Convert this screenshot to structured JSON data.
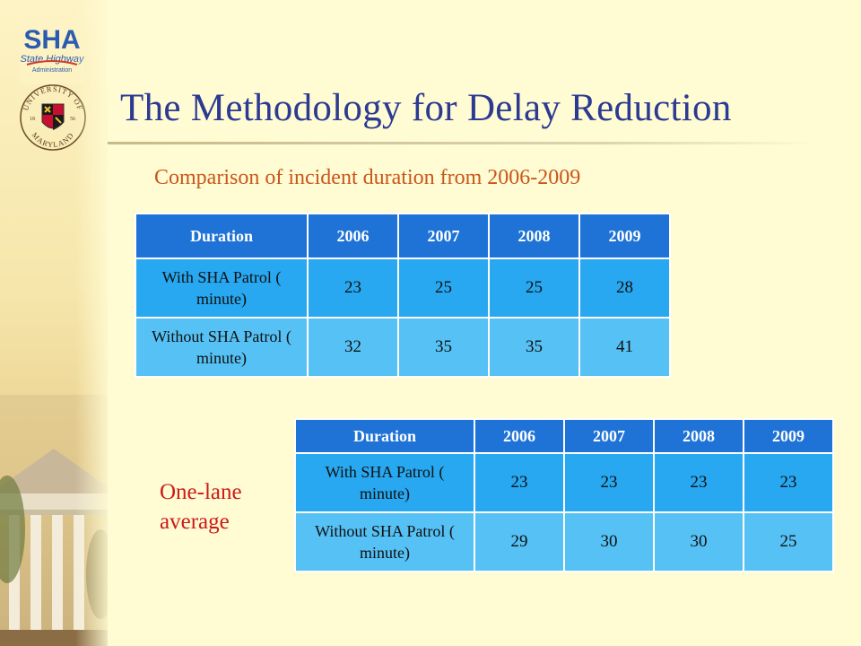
{
  "slide": {
    "title": "The Methodology for Delay Reduction",
    "subtitle": "Comparison of incident duration from 2006-2009",
    "side_label": [
      "One-lane",
      "average"
    ]
  },
  "logos": {
    "sha": {
      "text_large": "SHA",
      "text_line1": "State Highway",
      "text_line2": "Administration"
    },
    "umd": {
      "ring_top": "UNIVERSITY OF",
      "ring_bottom": "MARYLAND",
      "year_left": "18",
      "year_right": "56"
    }
  },
  "tables": [
    {
      "headers": [
        "Duration",
        "2006",
        "2007",
        "2008",
        "2009"
      ],
      "rows": [
        {
          "label": "With SHA Patrol ( minute)",
          "values": [
            "23",
            "25",
            "25",
            "28"
          ]
        },
        {
          "label": "Without SHA Patrol ( minute)",
          "values": [
            "32",
            "35",
            "35",
            "41"
          ]
        }
      ]
    },
    {
      "headers": [
        "Duration",
        "2006",
        "2007",
        "2008",
        "2009"
      ],
      "rows": [
        {
          "label": "With SHA Patrol ( minute)",
          "values": [
            "23",
            "23",
            "23",
            "23"
          ]
        },
        {
          "label": "Without SHA Patrol ( minute)",
          "values": [
            "29",
            "30",
            "30",
            "25"
          ]
        }
      ]
    }
  ],
  "colors": {
    "title": "#2c3a92",
    "subtitle": "#c9561c",
    "side_label": "#cc1a1a",
    "header_fill": "#1f73d6",
    "row1_fill": "#27a8f0",
    "row2_fill": "#55c1f5",
    "background": "#fffbd3"
  }
}
